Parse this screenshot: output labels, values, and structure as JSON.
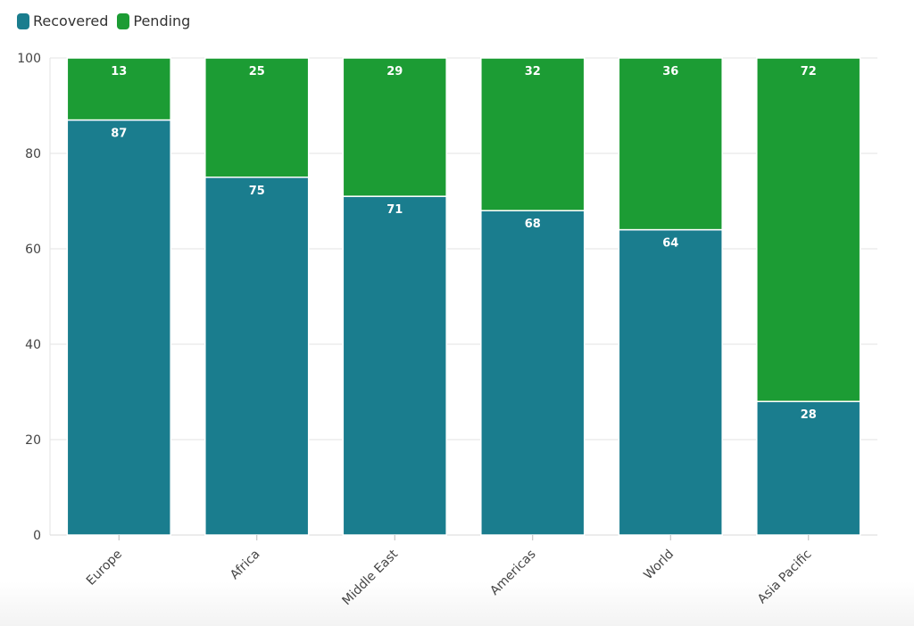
{
  "legend": {
    "items": [
      {
        "label": "Recovered",
        "color": "#1a7d8e"
      },
      {
        "label": "Pending",
        "color": "#1c9c34"
      }
    ]
  },
  "chart_data": {
    "type": "bar",
    "stacked": true,
    "categories": [
      "Europe",
      "Africa",
      "Middle East",
      "Americas",
      "World",
      "Asia Pacific"
    ],
    "series": [
      {
        "name": "Recovered",
        "values": [
          87,
          75,
          71,
          68,
          64,
          28
        ],
        "color": "#1a7d8e"
      },
      {
        "name": "Pending",
        "values": [
          13,
          25,
          29,
          32,
          36,
          72
        ],
        "color": "#1c9c34"
      }
    ],
    "ylim": [
      0,
      100
    ],
    "yticks": [
      0,
      20,
      40,
      60,
      80,
      100
    ],
    "grid": true,
    "legend_position": "top-left",
    "xlabel": "",
    "ylabel": ""
  }
}
